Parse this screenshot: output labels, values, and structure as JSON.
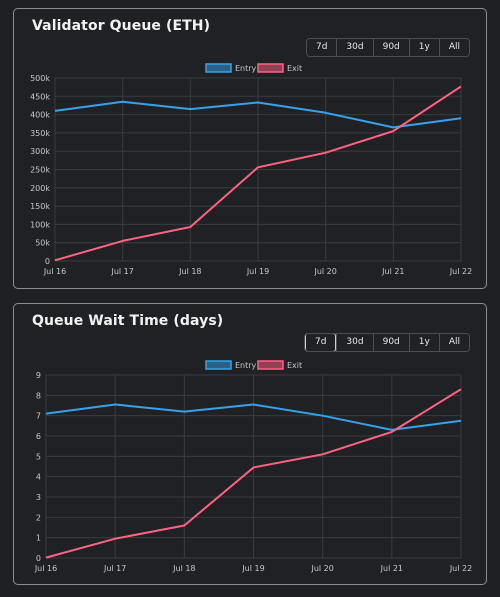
{
  "cards": [
    {
      "title": "Validator Queue (ETH)",
      "ranges": [
        "7d",
        "30d",
        "90d",
        "1y",
        "All"
      ],
      "active_range": "",
      "legend": [
        "Entry",
        "Exit"
      ]
    },
    {
      "title": "Queue Wait Time (days)",
      "ranges": [
        "7d",
        "30d",
        "90d",
        "1y",
        "All"
      ],
      "active_range": "7d",
      "legend": [
        "Entry",
        "Exit"
      ]
    }
  ],
  "colors": {
    "entry": "#36a2eb",
    "exit": "#ff6384",
    "grid": "#3a3c40",
    "tick": "#c8c8c8"
  },
  "chart_data": [
    {
      "type": "line",
      "title": "",
      "categories": [
        "Jul 16",
        "Jul 17",
        "Jul 18",
        "Jul 19",
        "Jul 20",
        "Jul 21",
        "Jul 22"
      ],
      "yticks": [
        "0",
        "50k",
        "100k",
        "150k",
        "200k",
        "250k",
        "300k",
        "350k",
        "400k",
        "450k",
        "500k"
      ],
      "ylim": [
        0,
        500000
      ],
      "grid": true,
      "legend_position": "top",
      "series": [
        {
          "name": "Entry",
          "values": [
            410000,
            435000,
            415000,
            433000,
            405000,
            365000,
            390000
          ]
        },
        {
          "name": "Exit",
          "values": [
            2000,
            55000,
            93000,
            256000,
            296000,
            355000,
            477000
          ]
        }
      ]
    },
    {
      "type": "line",
      "title": "",
      "categories": [
        "Jul 16",
        "Jul 17",
        "Jul 18",
        "Jul 19",
        "Jul 20",
        "Jul 21",
        "Jul 22"
      ],
      "yticks": [
        "0",
        "1",
        "2",
        "3",
        "4",
        "5",
        "6",
        "7",
        "8",
        "9"
      ],
      "ylim": [
        0,
        9
      ],
      "grid": true,
      "legend_position": "top",
      "series": [
        {
          "name": "Entry",
          "values": [
            7.1,
            7.55,
            7.2,
            7.55,
            7.0,
            6.3,
            6.75
          ]
        },
        {
          "name": "Exit",
          "values": [
            0.02,
            0.95,
            1.6,
            4.45,
            5.1,
            6.2,
            8.3
          ]
        }
      ]
    }
  ]
}
